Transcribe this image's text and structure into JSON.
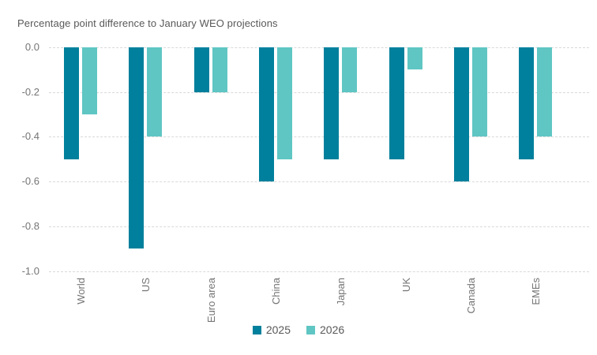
{
  "chart_data": {
    "type": "bar",
    "title": "Percentage point difference to January WEO projections",
    "categories": [
      "World",
      "US",
      "Euro area",
      "China",
      "Japan",
      "UK",
      "Canada",
      "EMEs"
    ],
    "series": [
      {
        "name": "2025",
        "color": "#00809c",
        "values": [
          -0.5,
          -0.9,
          -0.2,
          -0.6,
          -0.5,
          -0.5,
          -0.6,
          -0.5
        ]
      },
      {
        "name": "2026",
        "color": "#5fc6c3",
        "values": [
          -0.3,
          -0.4,
          -0.2,
          -0.5,
          -0.2,
          -0.1,
          -0.4,
          -0.4
        ]
      }
    ],
    "xlabel": "",
    "ylabel": "",
    "ylim": [
      -1.0,
      0.0
    ],
    "yticks": [
      0.0,
      -0.2,
      -0.4,
      -0.6,
      -0.8,
      -1.0
    ],
    "ytick_labels": [
      "0.0",
      "-0.2",
      "-0.4",
      "-0.6",
      "-0.8",
      "-1.0"
    ],
    "grid": true,
    "gridline_color": "#d9d9d9",
    "legend": {
      "position": "bottom-center",
      "entries": [
        "2025",
        "2026"
      ]
    }
  }
}
